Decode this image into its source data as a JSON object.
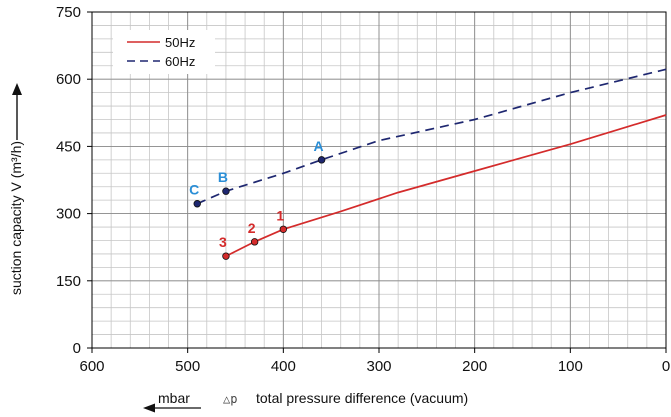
{
  "chart_data": {
    "type": "line",
    "title": "",
    "xlabel": "total pressure difference (vacuum)",
    "xlabel_symbol": "△p",
    "x_unit": "mbar",
    "ylabel": "suction capacity V (m³/h)",
    "xlim": [
      600,
      0
    ],
    "ylim": [
      0,
      750
    ],
    "x_ticks": [
      600,
      500,
      400,
      300,
      200,
      100,
      0
    ],
    "y_ticks": [
      0,
      150,
      300,
      450,
      600,
      750
    ],
    "grid": true,
    "legend_position": "top-left",
    "series": [
      {
        "name": "50Hz",
        "color": "#d42b2b",
        "style": "solid",
        "points": [
          [
            460,
            205
          ],
          [
            430,
            237
          ],
          [
            400,
            265
          ],
          [
            340,
            305
          ],
          [
            280,
            347
          ],
          [
            200,
            395
          ],
          [
            100,
            455
          ],
          [
            0,
            520
          ]
        ],
        "labels": [
          {
            "text": "3",
            "x": 460,
            "y": 205
          },
          {
            "text": "2",
            "x": 430,
            "y": 237
          },
          {
            "text": "1",
            "x": 400,
            "y": 265
          }
        ]
      },
      {
        "name": "60Hz",
        "color": "#1e2770",
        "style": "dashed",
        "points": [
          [
            490,
            322
          ],
          [
            460,
            350
          ],
          [
            400,
            390
          ],
          [
            360,
            420
          ],
          [
            300,
            463
          ],
          [
            200,
            510
          ],
          [
            100,
            570
          ],
          [
            0,
            622
          ]
        ],
        "labels": [
          {
            "text": "C",
            "x": 490,
            "y": 322
          },
          {
            "text": "B",
            "x": 460,
            "y": 350
          },
          {
            "text": "A",
            "x": 360,
            "y": 420
          }
        ]
      }
    ],
    "point_label_color_50hz": "#d42b2b",
    "point_label_color_60hz": "#2a8ed6"
  }
}
